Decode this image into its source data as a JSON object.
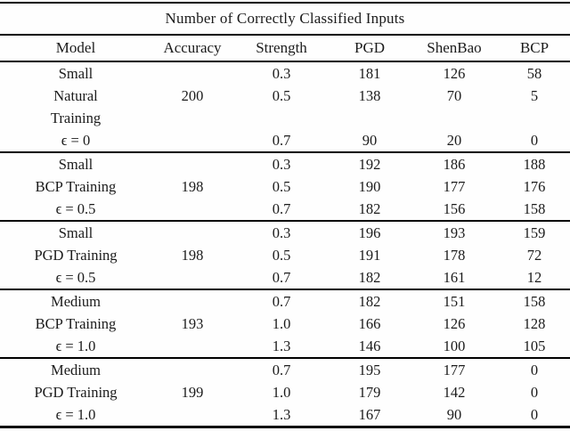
{
  "table": {
    "title": "Number of Correctly Classified Inputs",
    "columns": [
      "Model",
      "Accuracy",
      "Strength",
      "PGD",
      "ShenBao",
      "BCP"
    ],
    "groups": [
      {
        "rows": [
          [
            "Small",
            "",
            "0.3",
            "181",
            "126",
            "58"
          ],
          [
            "Natural",
            "200",
            "0.5",
            "138",
            "70",
            "5"
          ],
          [
            "Training",
            "",
            "",
            "",
            "",
            ""
          ],
          [
            "ϵ = 0",
            "",
            "0.7",
            "90",
            "20",
            "0"
          ]
        ]
      },
      {
        "rows": [
          [
            "Small",
            "",
            "0.3",
            "192",
            "186",
            "188"
          ],
          [
            "BCP Training",
            "198",
            "0.5",
            "190",
            "177",
            "176"
          ],
          [
            "ϵ = 0.5",
            "",
            "0.7",
            "182",
            "156",
            "158"
          ]
        ]
      },
      {
        "rows": [
          [
            "Small",
            "",
            "0.3",
            "196",
            "193",
            "159"
          ],
          [
            "PGD Training",
            "198",
            "0.5",
            "191",
            "178",
            "72"
          ],
          [
            "ϵ = 0.5",
            "",
            "0.7",
            "182",
            "161",
            "12"
          ]
        ]
      },
      {
        "rows": [
          [
            "Medium",
            "",
            "0.7",
            "182",
            "151",
            "158"
          ],
          [
            "BCP Training",
            "193",
            "1.0",
            "166",
            "126",
            "128"
          ],
          [
            "ϵ = 1.0",
            "",
            "1.3",
            "146",
            "100",
            "105"
          ]
        ]
      },
      {
        "rows": [
          [
            "Medium",
            "",
            "0.7",
            "195",
            "177",
            "0"
          ],
          [
            "PGD Training",
            "199",
            "1.0",
            "179",
            "142",
            "0"
          ],
          [
            "ϵ = 1.0",
            "",
            "1.3",
            "167",
            "90",
            "0"
          ]
        ]
      }
    ],
    "colors": {
      "rule": "#000000",
      "text": "#1b1b1b",
      "background": "#fefefe"
    }
  }
}
